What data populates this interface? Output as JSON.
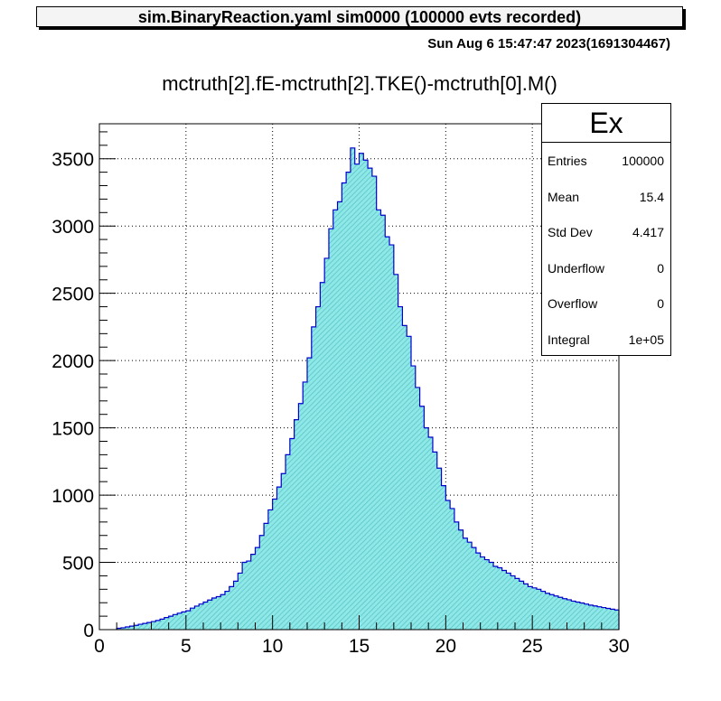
{
  "banner": "sim.BinaryReaction.yaml  sim0000 (100000 evts recorded)",
  "datestamp": "Sun Aug  6 15:47:47 2023(1691304467)",
  "stats": {
    "title": "Ex",
    "rows": [
      {
        "label": "Entries",
        "value": "100000"
      },
      {
        "label": "Mean",
        "value": "15.4"
      },
      {
        "label": "Std Dev",
        "value": "4.417"
      },
      {
        "label": "Underflow",
        "value": "0"
      },
      {
        "label": "Overflow",
        "value": "0"
      },
      {
        "label": "Integral",
        "value": "1e+05"
      }
    ]
  },
  "colors": {
    "fill": "#8fe8e8",
    "hatch": "#57c2c2",
    "line": "#0000cc",
    "grid": "#000000"
  },
  "chart_data": {
    "type": "bar",
    "title": "mctruth[2].fE-mctruth[2].TKE()-mctruth[0].M()",
    "xlabel": "",
    "ylabel": "",
    "xlim": [
      0,
      30
    ],
    "ylim": [
      0,
      3760
    ],
    "grid": true,
    "xticks": [
      0,
      5,
      10,
      15,
      20,
      25,
      30
    ],
    "yticks": [
      0,
      500,
      1000,
      1500,
      2000,
      2500,
      3000,
      3500
    ],
    "bin_width": 0.25,
    "bin_start": 1.0,
    "values": [
      10,
      14,
      20,
      26,
      32,
      40,
      46,
      53,
      60,
      68,
      78,
      90,
      100,
      112,
      122,
      132,
      140,
      160,
      175,
      190,
      205,
      220,
      235,
      245,
      260,
      285,
      320,
      360,
      420,
      500,
      510,
      560,
      610,
      700,
      790,
      890,
      970,
      1060,
      1160,
      1300,
      1420,
      1560,
      1680,
      1840,
      2020,
      2250,
      2400,
      2580,
      2760,
      2980,
      3120,
      3180,
      3320,
      3400,
      3580,
      3460,
      3540,
      3490,
      3430,
      3370,
      3120,
      3080,
      2920,
      2860,
      2640,
      2400,
      2260,
      2180,
      1960,
      1800,
      1660,
      1500,
      1430,
      1320,
      1200,
      1070,
      960,
      900,
      800,
      740,
      680,
      650,
      610,
      570,
      540,
      520,
      500,
      470,
      460,
      440,
      420,
      400,
      380,
      360,
      340,
      320,
      310,
      300,
      285,
      270,
      260,
      250,
      240,
      230,
      222,
      212,
      205,
      198,
      190,
      182,
      176,
      170,
      164,
      158,
      152,
      146
    ]
  }
}
